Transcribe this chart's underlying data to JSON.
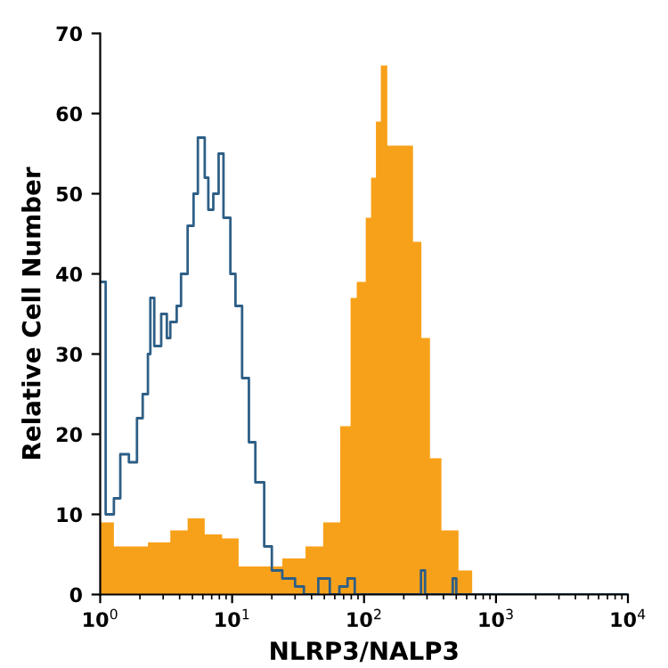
{
  "chart_data": {
    "type": "area",
    "xlabel": "NLRP3/NALP3",
    "ylabel": "Relative Cell Number",
    "log": "x",
    "xlim": [
      1,
      10000
    ],
    "xticks": [
      {
        "value": 1,
        "label": "10$^{0}$"
      },
      {
        "value": 10,
        "label": "10$^{1}$"
      },
      {
        "value": 100,
        "label": "10$^{2}$"
      },
      {
        "value": 1000,
        "label": "10$^{3}$"
      },
      {
        "value": 10000,
        "label": "10$^{4}$"
      }
    ],
    "ylim": [
      0,
      70
    ],
    "yticks": [
      0,
      10,
      20,
      30,
      40,
      50,
      60,
      70
    ],
    "grid": false,
    "legend": false,
    "series": [
      {
        "color": "#f7a11a",
        "x": [
          1,
          1.05,
          1.27,
          1.56,
          2.3,
          3.4,
          4.6,
          6.2,
          8.4,
          11.2,
          16.5,
          24,
          36,
          49,
          66,
          79,
          88,
          103,
          113,
          123,
          134,
          150,
          175,
          203,
          235,
          272,
          316,
          386,
          520,
          660
        ],
        "values": [
          9,
          9,
          6,
          6,
          6.5,
          8,
          9.5,
          7.5,
          7,
          3.5,
          3.5,
          4.5,
          6,
          9,
          21,
          37,
          39,
          47,
          52,
          59,
          66,
          56,
          56,
          56,
          44,
          32,
          17,
          8,
          3,
          0
        ]
      },
      {
        "type": "step",
        "color": "#2e5f86",
        "x": [
          1,
          1.1,
          1.27,
          1.42,
          1.65,
          1.9,
          2.1,
          2.3,
          2.4,
          2.57,
          2.9,
          3.2,
          3.4,
          3.8,
          4.1,
          4.6,
          5.1,
          5.5,
          6.2,
          6.6,
          7.2,
          7.9,
          8.6,
          9.7,
          10.6,
          11.9,
          13.4,
          15,
          17.5,
          20,
          24,
          30,
          35,
          45,
          55,
          65,
          75,
          85,
          270,
          290,
          470,
          500,
          10000
        ],
        "values": [
          39,
          10,
          12,
          17.5,
          16.5,
          22,
          25,
          30,
          37,
          31,
          35,
          32,
          34,
          36,
          40,
          46,
          50,
          57,
          52,
          48,
          50,
          55,
          47,
          40,
          36,
          27,
          19,
          14,
          6,
          3,
          2,
          1,
          0,
          2,
          0,
          1,
          2,
          0,
          3,
          0,
          2,
          0,
          0
        ]
      }
    ]
  }
}
